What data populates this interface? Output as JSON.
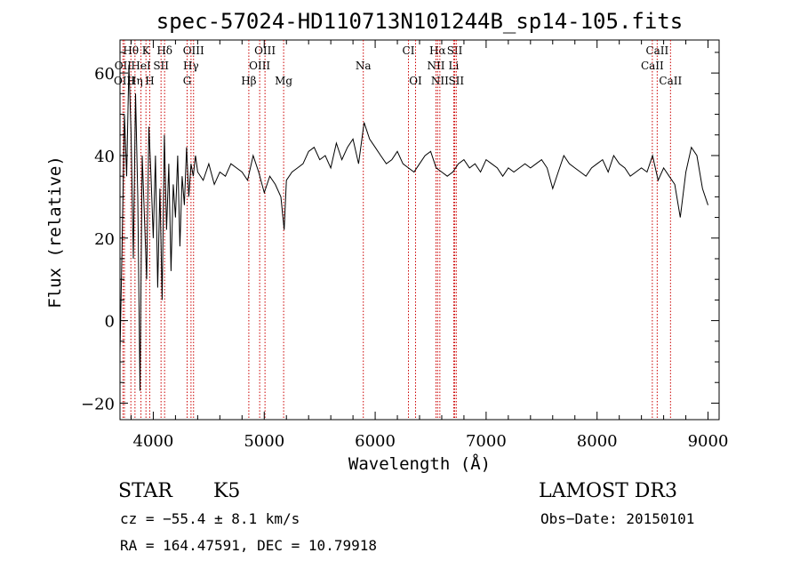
{
  "chart_data": {
    "type": "line",
    "title": "spec-57024-HD110713N101244B_sp14-105.fits",
    "xlabel": "Wavelength (Å)",
    "ylabel": "Flux (relative)",
    "xlim": [
      3700,
      9100
    ],
    "ylim": [
      -24,
      68
    ],
    "x_ticks": [
      4000,
      5000,
      6000,
      7000,
      8000,
      9000
    ],
    "y_ticks": [
      -20,
      0,
      20,
      40,
      60
    ],
    "series": [
      {
        "name": "spectrum",
        "x": [
          3700,
          3720,
          3740,
          3760,
          3780,
          3800,
          3820,
          3840,
          3860,
          3880,
          3900,
          3920,
          3940,
          3960,
          3980,
          4000,
          4020,
          4040,
          4060,
          4080,
          4100,
          4120,
          4140,
          4160,
          4180,
          4200,
          4220,
          4240,
          4260,
          4280,
          4300,
          4320,
          4340,
          4360,
          4380,
          4400,
          4450,
          4500,
          4550,
          4600,
          4650,
          4700,
          4750,
          4800,
          4850,
          4900,
          4950,
          5000,
          5050,
          5100,
          5150,
          5180,
          5200,
          5250,
          5300,
          5350,
          5400,
          5450,
          5500,
          5550,
          5600,
          5650,
          5700,
          5750,
          5800,
          5850,
          5900,
          5950,
          6000,
          6050,
          6100,
          6150,
          6200,
          6250,
          6300,
          6350,
          6400,
          6450,
          6500,
          6550,
          6600,
          6650,
          6700,
          6750,
          6800,
          6850,
          6900,
          6950,
          7000,
          7050,
          7100,
          7150,
          7200,
          7250,
          7300,
          7350,
          7400,
          7450,
          7500,
          7550,
          7600,
          7650,
          7700,
          7750,
          7800,
          7850,
          7900,
          7950,
          8000,
          8050,
          8100,
          8150,
          8200,
          8250,
          8300,
          8350,
          8400,
          8450,
          8500,
          8550,
          8600,
          8650,
          8700,
          8750,
          8800,
          8850,
          8900,
          8950,
          9000
        ],
        "values": [
          -8,
          20,
          50,
          35,
          62,
          45,
          15,
          55,
          30,
          -17,
          40,
          25,
          10,
          47,
          35,
          20,
          40,
          8,
          32,
          5,
          45,
          22,
          38,
          12,
          33,
          25,
          40,
          18,
          35,
          28,
          42,
          30,
          38,
          35,
          40,
          36,
          34,
          38,
          33,
          36,
          35,
          38,
          37,
          36,
          34,
          40,
          36,
          31,
          35,
          33,
          30,
          22,
          34,
          36,
          37,
          38,
          41,
          42,
          39,
          40,
          37,
          43,
          39,
          42,
          44,
          38,
          48,
          44,
          42,
          40,
          38,
          39,
          41,
          38,
          37,
          36,
          38,
          40,
          41,
          37,
          36,
          35,
          36,
          38,
          39,
          37,
          38,
          36,
          39,
          38,
          37,
          35,
          37,
          36,
          37,
          38,
          37,
          38,
          39,
          37,
          32,
          36,
          40,
          38,
          37,
          36,
          35,
          37,
          38,
          39,
          36,
          40,
          38,
          37,
          35,
          36,
          37,
          36,
          40,
          34,
          37,
          35,
          33,
          25,
          36,
          42,
          40,
          32,
          28
        ]
      }
    ],
    "line_marks": [
      {
        "label": "Hθ",
        "wavelength": 3798,
        "row": 1
      },
      {
        "label": "K",
        "wavelength": 3934,
        "row": 1
      },
      {
        "label": "Hδ",
        "wavelength": 4102,
        "row": 1
      },
      {
        "label": "OIII",
        "wavelength": 4363,
        "row": 1
      },
      {
        "label": "OIII",
        "wavelength": 5007,
        "row": 1
      },
      {
        "label": "CI",
        "wavelength": 6300,
        "row": 1
      },
      {
        "label": "Hα",
        "wavelength": 6563,
        "row": 1
      },
      {
        "label": "SII",
        "wavelength": 6717,
        "row": 1
      },
      {
        "label": "CaII",
        "wavelength": 8542,
        "row": 1
      },
      {
        "label": "OII",
        "wavelength": 3727,
        "row": 2
      },
      {
        "label": "HeI",
        "wavelength": 3889,
        "row": 2
      },
      {
        "label": "SII",
        "wavelength": 4070,
        "row": 2
      },
      {
        "label": "Hγ",
        "wavelength": 4340,
        "row": 2
      },
      {
        "label": "OIII",
        "wavelength": 4959,
        "row": 2
      },
      {
        "label": "Na",
        "wavelength": 5893,
        "row": 2
      },
      {
        "label": "NII",
        "wavelength": 6548,
        "row": 2
      },
      {
        "label": "Li",
        "wavelength": 6708,
        "row": 2
      },
      {
        "label": "CaII",
        "wavelength": 8498,
        "row": 2
      },
      {
        "label": "OIII",
        "wavelength": 3740,
        "row": 3
      },
      {
        "label": "Hη",
        "wavelength": 3835,
        "row": 3
      },
      {
        "label": "H",
        "wavelength": 3968,
        "row": 3
      },
      {
        "label": "G",
        "wavelength": 4305,
        "row": 3
      },
      {
        "label": "Hβ",
        "wavelength": 4861,
        "row": 3
      },
      {
        "label": "Mg",
        "wavelength": 5175,
        "row": 3
      },
      {
        "label": "OI",
        "wavelength": 6364,
        "row": 3
      },
      {
        "label": "NII",
        "wavelength": 6583,
        "row": 3
      },
      {
        "label": "SII",
        "wavelength": 6731,
        "row": 3
      },
      {
        "label": "CaII",
        "wavelength": 8662,
        "row": 3
      }
    ],
    "line_color": "#cc0000",
    "grid": false
  },
  "info": {
    "object_type": "STAR",
    "subclass": "K5",
    "survey": "LAMOST DR3",
    "cz": "cz = −55.4 ± 8.1 km/s",
    "obs_date": "Obs−Date: 20150101",
    "coords": "RA = 164.47591, DEC =  10.79918"
  }
}
